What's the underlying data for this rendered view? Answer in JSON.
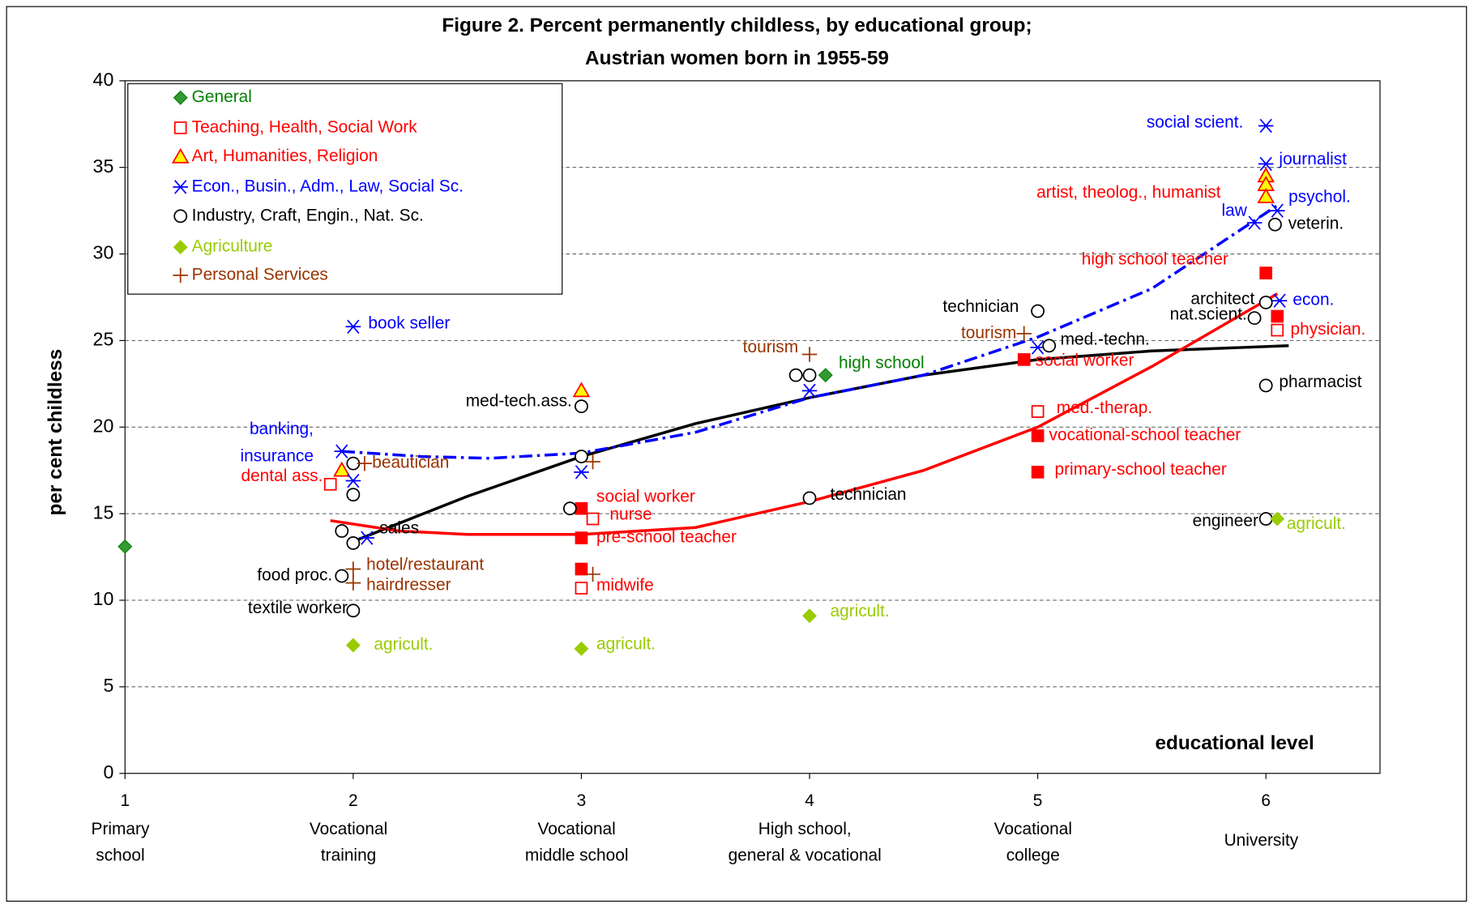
{
  "chart_data": {
    "type": "scatter",
    "title": [
      "Figure 2. Percent permanently childless, by educational group;",
      "Austrian women born in 1955-59"
    ],
    "y_label": "per cent  childless",
    "x_label": "educational level",
    "xlim": [
      1,
      6.5
    ],
    "xticks": [
      1,
      2,
      3,
      4,
      5,
      6
    ],
    "x_category_labels": [
      [
        "Primary",
        "school"
      ],
      [
        "Vocational",
        "training"
      ],
      [
        "Vocational",
        "middle school"
      ],
      [
        "High school,",
        "general & vocational"
      ],
      [
        "Vocational",
        "college"
      ],
      [
        "University"
      ]
    ],
    "ylim": [
      0,
      40
    ],
    "yticks": [
      0,
      5,
      10,
      15,
      20,
      25,
      30,
      35,
      40
    ],
    "grid": true,
    "legend": "upper left",
    "series": [
      {
        "name": "General",
        "marker": "diamond",
        "color": "#008000",
        "marker_fill": "#339933",
        "x": [
          1,
          4.07
        ],
        "values": [
          13.1,
          23.0
        ],
        "labels": [
          null,
          "high school"
        ]
      },
      {
        "name": "Teaching, Health, Social Work",
        "marker": "square",
        "color": "#ff0000",
        "marker_fill": "#ff0000",
        "x": [
          1.9,
          3.0,
          3.05,
          3.0,
          3.0,
          3.0,
          4.94,
          5.0,
          5.0,
          5.0,
          6.0,
          6.05,
          6.05
        ],
        "values": [
          16.7,
          15.3,
          14.7,
          13.6,
          11.8,
          10.7,
          23.9,
          20.9,
          19.5,
          17.4,
          28.9,
          26.4,
          25.6
        ],
        "filled": [
          false,
          true,
          false,
          true,
          true,
          false,
          true,
          false,
          true,
          true,
          true,
          true,
          false
        ],
        "labels": [
          "dental ass.",
          "social worker",
          "nurse",
          "pre-school teacher",
          null,
          "midwife",
          "social worker",
          "med.-therap.",
          "vocational-school teacher",
          "primary-school teacher",
          "high school teacher",
          null,
          "physician."
        ]
      },
      {
        "name": "Art, Humanities, Religion",
        "marker": "triangle",
        "color": "#ff0000",
        "marker_fill": "#ffff00",
        "x": [
          1.95,
          3.0,
          6.0,
          6.0,
          6.0
        ],
        "values": [
          17.5,
          22.1,
          34.5,
          34.0,
          33.3
        ],
        "labels": [
          null,
          null,
          null,
          "artist, theolog., humanist",
          null
        ]
      },
      {
        "name": "Econ., Busin., Adm., Law, Social Sc.",
        "marker": "asterisk",
        "color": "#0000ff",
        "marker_fill": "#0000ff",
        "x": [
          2.0,
          1.95,
          2.0,
          2.06,
          3.0,
          4.0,
          5.0,
          6.0,
          6.0,
          6.05,
          5.95,
          6.06
        ],
        "values": [
          25.8,
          18.6,
          16.9,
          13.6,
          17.4,
          22.1,
          24.6,
          37.4,
          35.2,
          32.5,
          31.8,
          27.3
        ],
        "labels": [
          "book seller",
          [
            "banking,",
            "insurance"
          ],
          null,
          null,
          null,
          null,
          null,
          "social scient.",
          "journalist",
          "psychol.",
          "law",
          "econ."
        ]
      },
      {
        "name": "Industry, Craft, Engin., Nat. Sc.",
        "marker": "circle",
        "color": "#000000",
        "marker_fill": "#ffffff",
        "x": [
          1.95,
          2.0,
          2.0,
          2.0,
          1.95,
          2.0,
          3.0,
          3.0,
          2.95,
          3.94,
          4.0,
          4.0,
          5.0,
          5.05,
          6.0,
          5.95,
          6.04,
          6.0,
          6.0
        ],
        "values": [
          14.0,
          13.3,
          17.9,
          16.1,
          11.4,
          9.4,
          21.2,
          18.3,
          15.3,
          23.0,
          23.0,
          15.9,
          26.7,
          24.7,
          27.2,
          26.3,
          31.7,
          22.4,
          14.7
        ],
        "labels": [
          null,
          "sales",
          null,
          null,
          "food proc.",
          "textile worker",
          "med-tech.ass.",
          null,
          null,
          null,
          null,
          "technician",
          "technician",
          "med.-techn.",
          "architect",
          "nat.scient.",
          "veterin.",
          "pharmacist",
          "engineer"
        ]
      },
      {
        "name": "Agriculture",
        "marker": "diamond",
        "color": "#99cc00",
        "marker_fill": "#99cc00",
        "x": [
          2.0,
          3.0,
          4.0,
          6.05
        ],
        "values": [
          7.4,
          7.2,
          9.1,
          14.7
        ],
        "labels": [
          "agricult.",
          "agricult.",
          "agricult.",
          "agricult."
        ]
      },
      {
        "name": "Personal Services",
        "marker": "plus",
        "color": "#993300",
        "marker_fill": "#993300",
        "x": [
          2.0,
          2.0,
          2.05,
          3.05,
          3.05,
          4.0,
          4.94
        ],
        "values": [
          11.8,
          11.0,
          17.9,
          18.0,
          11.5,
          24.2,
          25.4
        ],
        "labels": [
          "hotel/restaurant",
          "hairdresser",
          "beautician",
          null,
          null,
          "tourism",
          "tourism"
        ]
      }
    ],
    "trends": [
      {
        "color": "#000000",
        "dashed": false,
        "x": [
          2.0,
          2.5,
          3.0,
          3.5,
          4.0,
          4.5,
          5.0,
          5.5,
          6.1
        ],
        "values": [
          13.4,
          16.0,
          18.3,
          20.2,
          21.7,
          23.0,
          23.9,
          24.4,
          24.7
        ]
      },
      {
        "color": "#ff0000",
        "dashed": false,
        "x": [
          1.9,
          2.2,
          2.5,
          3.0,
          3.5,
          4.0,
          4.5,
          5.0,
          5.5,
          6.05
        ],
        "values": [
          14.6,
          14.0,
          13.8,
          13.8,
          14.2,
          15.7,
          17.5,
          20.0,
          23.5,
          27.7
        ]
      },
      {
        "color": "#0000ff",
        "dashed": true,
        "x": [
          1.95,
          2.3,
          2.6,
          3.0,
          3.5,
          4.0,
          4.5,
          5.0,
          5.5,
          6.05
        ],
        "values": [
          18.6,
          18.3,
          18.2,
          18.5,
          19.7,
          21.7,
          23.0,
          25.2,
          28.0,
          32.8
        ]
      }
    ]
  }
}
